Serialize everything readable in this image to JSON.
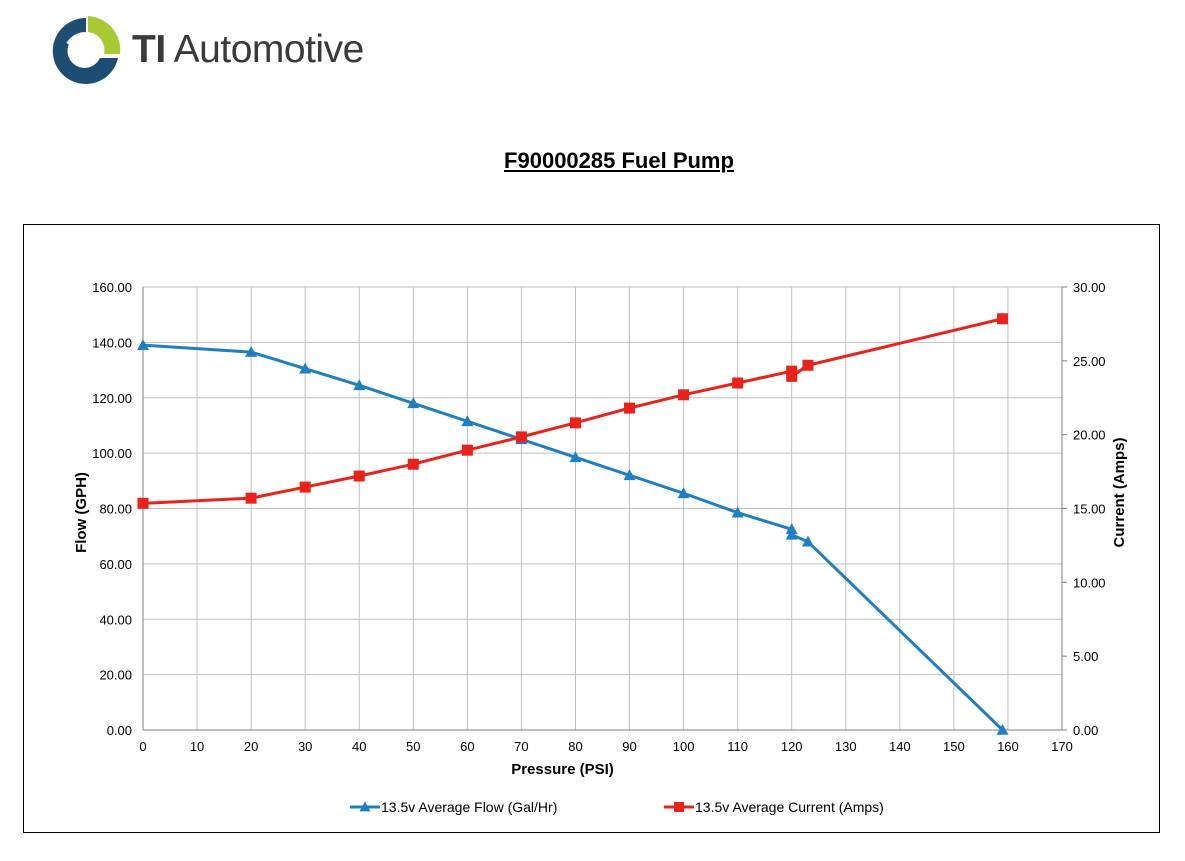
{
  "brand": {
    "name_bold": "TI",
    "name_rest": "Automotive",
    "logo_icon": "ti-automotive-swirl-logo",
    "colors": {
      "green": "#a9c934",
      "navy": "#1e4d74"
    }
  },
  "page_title": "F90000285 Fuel Pump",
  "chart_data": {
    "type": "line",
    "title": "F90000285 Fuel Pump",
    "xlabel": "Pressure (PSI)",
    "ylabel": "Flow (GPH)",
    "y2label": "Current (Amps)",
    "xlim": [
      0,
      170
    ],
    "ylim": [
      0,
      160
    ],
    "y2lim": [
      0,
      30
    ],
    "x_ticks": [
      "0",
      "10",
      "20",
      "30",
      "40",
      "50",
      "60",
      "70",
      "80",
      "90",
      "100",
      "110",
      "120",
      "130",
      "140",
      "150",
      "160",
      "170"
    ],
    "y_ticks": [
      "0.00",
      "20.00",
      "40.00",
      "60.00",
      "80.00",
      "100.00",
      "120.00",
      "140.00",
      "160.00"
    ],
    "y2_ticks": [
      "0.00",
      "5.00",
      "10.00",
      "15.00",
      "20.00",
      "25.00",
      "30.00"
    ],
    "grid": true,
    "legend_position": "bottom",
    "series": [
      {
        "name": "13.5v Average Flow (Gal/Hr)",
        "axis": "left",
        "marker": "triangle",
        "color": "#1f7fc2",
        "points": [
          [
            0,
            139.0
          ],
          [
            20,
            136.5
          ],
          [
            30,
            130.5
          ],
          [
            40,
            124.5
          ],
          [
            50,
            118.0
          ],
          [
            60,
            111.5
          ],
          [
            70,
            105.0
          ],
          [
            80,
            98.5
          ],
          [
            90,
            92.0
          ],
          [
            100,
            85.5
          ],
          [
            110,
            78.5
          ],
          [
            120,
            72.5
          ],
          [
            120,
            70.5
          ],
          [
            123,
            68.0
          ],
          [
            159,
            0.0
          ]
        ]
      },
      {
        "name": "13.5v Average Current (Amps)",
        "axis": "right",
        "marker": "square",
        "color": "#e8231b",
        "points": [
          [
            0,
            15.35
          ],
          [
            20,
            15.7
          ],
          [
            30,
            16.45
          ],
          [
            40,
            17.2
          ],
          [
            50,
            18.0
          ],
          [
            60,
            18.95
          ],
          [
            70,
            19.85
          ],
          [
            80,
            20.8
          ],
          [
            90,
            21.8
          ],
          [
            100,
            22.7
          ],
          [
            110,
            23.5
          ],
          [
            120,
            24.3
          ],
          [
            120,
            23.95
          ],
          [
            123,
            24.7
          ],
          [
            159,
            27.85
          ]
        ]
      }
    ]
  }
}
